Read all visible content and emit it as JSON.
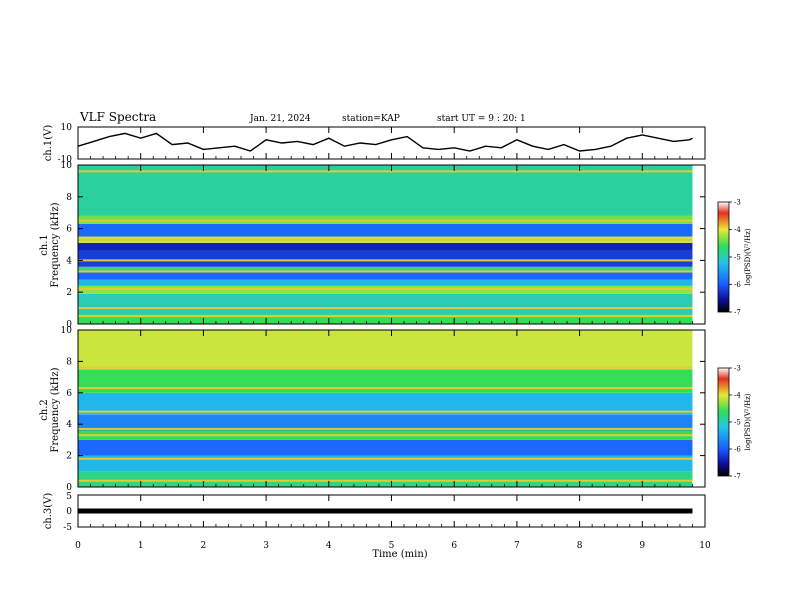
{
  "header": {
    "title": "VLF Spectra",
    "date": "Jan. 21, 2024",
    "station": "station=KAP",
    "start": "start UT =  9 : 20: 1"
  },
  "chart_data": [
    {
      "type": "line",
      "name": "waveform-ch1",
      "ylabel": "ch.1(V)",
      "ylim": [
        -10,
        10
      ],
      "ytick_labels": [
        "10",
        "-10"
      ],
      "xlim": [
        0,
        10
      ],
      "line_color": "#000000",
      "x": [
        0,
        0.25,
        0.5,
        0.75,
        1,
        1.25,
        1.5,
        1.75,
        2,
        2.25,
        2.5,
        2.75,
        3,
        3.25,
        3.5,
        3.75,
        4,
        4.25,
        4.5,
        4.75,
        5,
        5.25,
        5.5,
        5.75,
        6,
        6.25,
        6.5,
        6.75,
        7,
        7.25,
        7.5,
        7.75,
        8,
        8.25,
        8.5,
        8.75,
        9,
        9.25,
        9.5,
        9.75,
        9.8
      ],
      "y": [
        -2,
        1,
        4,
        6,
        3,
        6,
        -1,
        0,
        -4,
        -3,
        -2,
        -5,
        2,
        0,
        1,
        -1,
        3,
        -2,
        0,
        -1,
        2,
        4,
        -3,
        -4,
        -3,
        -5,
        -2,
        -3,
        2,
        -2,
        -4,
        -1,
        -5,
        -4,
        -2,
        3,
        5,
        3,
        1,
        2,
        3
      ]
    },
    {
      "type": "heatmap",
      "name": "spectrogram-ch1",
      "ylabel": "ch.1\nFrequency (kHz)",
      "ylim": [
        0,
        10
      ],
      "ytick_labels": [
        "0",
        "2",
        "4",
        "6",
        "8",
        "10"
      ],
      "xlim": [
        0,
        9.8
      ],
      "colorbar": {
        "label": "log(PSD)(V²/Hz)",
        "range": [
          -7,
          -3
        ],
        "tick_labels": [
          "-3",
          "-4",
          "-5",
          "-6",
          "-7"
        ]
      },
      "bands_khz": [
        {
          "from": 0,
          "to": 0.6,
          "level": -4.6
        },
        {
          "from": 0.6,
          "to": 1.9,
          "level": -5.0
        },
        {
          "from": 1.9,
          "to": 2.4,
          "level": -4.3
        },
        {
          "from": 2.4,
          "to": 2.8,
          "level": -5.3
        },
        {
          "from": 2.8,
          "to": 3.3,
          "level": -5.9
        },
        {
          "from": 3.3,
          "to": 3.6,
          "level": -4.7
        },
        {
          "from": 3.6,
          "to": 4.6,
          "level": -6.2
        },
        {
          "from": 4.6,
          "to": 5.1,
          "level": -6.4
        },
        {
          "from": 5.1,
          "to": 5.5,
          "level": -4.1
        },
        {
          "from": 5.5,
          "to": 6.3,
          "level": -5.9
        },
        {
          "from": 6.3,
          "to": 6.8,
          "level": -4.4
        },
        {
          "from": 6.8,
          "to": 10,
          "level": -4.9
        }
      ],
      "lines_khz": [
        0.5,
        1.0,
        2.2,
        3.3,
        4.0,
        5.3,
        6.5,
        9.6
      ]
    },
    {
      "type": "heatmap",
      "name": "spectrogram-ch2",
      "ylabel": "ch.2\nFrequency (kHz)",
      "ylim": [
        0,
        10
      ],
      "ytick_labels": [
        "0",
        "2",
        "4",
        "6",
        "8",
        "10"
      ],
      "xlim": [
        0,
        9.8
      ],
      "colorbar": {
        "label": "log(PSD)(V²/Hz)",
        "range": [
          -7,
          -3
        ],
        "tick_labels": [
          "-3",
          "-4",
          "-5",
          "-6",
          "-7"
        ]
      },
      "bands_khz": [
        {
          "from": 0,
          "to": 1.0,
          "level": -4.8
        },
        {
          "from": 1.0,
          "to": 2.0,
          "level": -5.3
        },
        {
          "from": 2.0,
          "to": 3.0,
          "level": -5.9
        },
        {
          "from": 3.0,
          "to": 3.6,
          "level": -4.6
        },
        {
          "from": 3.6,
          "to": 4.6,
          "level": -5.7
        },
        {
          "from": 4.6,
          "to": 6.0,
          "level": -5.3
        },
        {
          "from": 6.0,
          "to": 7.5,
          "level": -4.6
        },
        {
          "from": 7.5,
          "to": 10,
          "level": -4.1
        }
      ],
      "lines_khz": [
        0.4,
        1.8,
        3.3,
        3.7,
        4.8,
        6.3,
        7.6
      ]
    },
    {
      "type": "line",
      "name": "waveform-ch3",
      "ylabel": "ch.3(V)",
      "ylim": [
        -5,
        5
      ],
      "ytick_labels": [
        "5",
        "0",
        "-5"
      ],
      "xlim": [
        0,
        10
      ],
      "line_color": "#000000",
      "x": [
        0,
        9.8
      ],
      "y": [
        0,
        0
      ]
    }
  ],
  "x_axis": {
    "label": "Time (min)",
    "ticks": [
      0,
      1,
      2,
      3,
      4,
      5,
      6,
      7,
      8,
      9,
      10
    ],
    "tick_labels": [
      "0",
      "1",
      "2",
      "3",
      "4",
      "5",
      "6",
      "7",
      "8",
      "9",
      "10"
    ]
  }
}
